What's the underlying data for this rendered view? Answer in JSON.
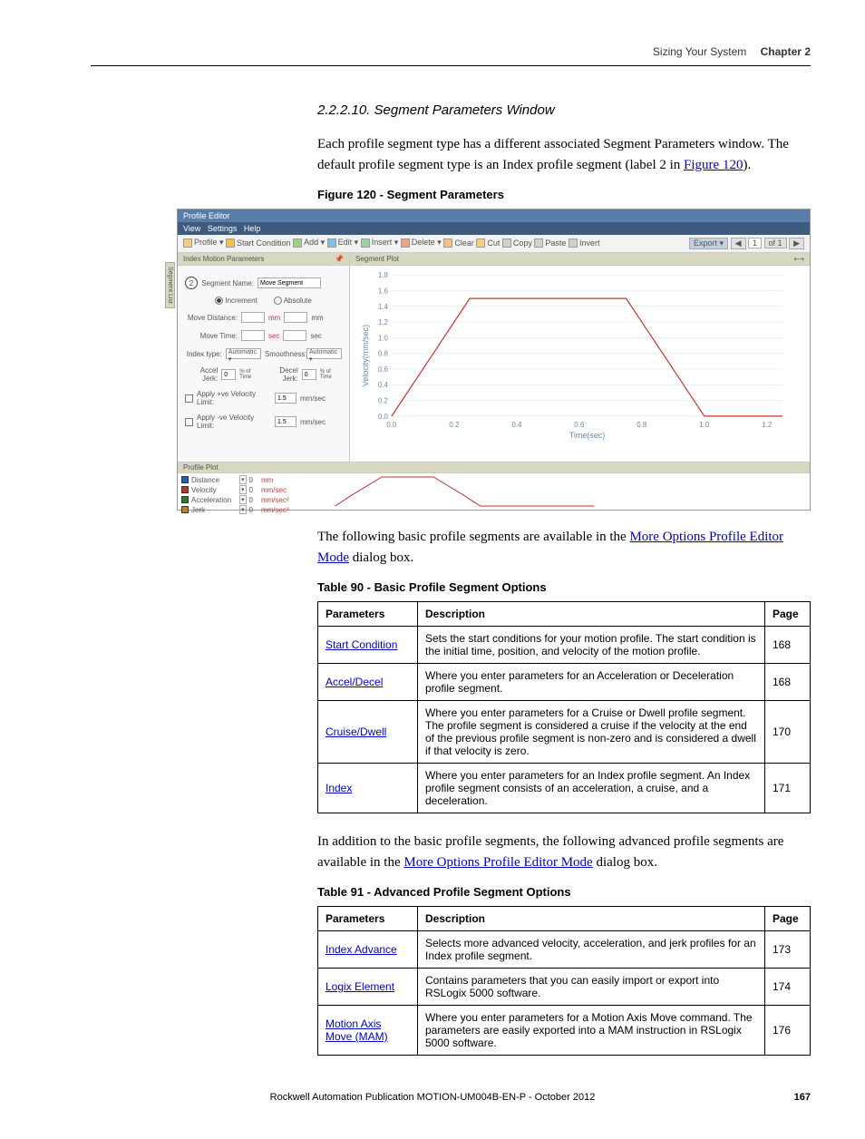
{
  "header": {
    "title": "Sizing Your System",
    "chapter": "Chapter 2"
  },
  "section": {
    "num_title": "2.2.2.10.  Segment Parameters Window",
    "para1_a": "Each profile segment type has a different associated Segment Parameters window. The default profile segment type is an Index profile segment (label 2 in ",
    "para1_link": "Figure 120",
    "para1_b": ").",
    "fig_caption": "Figure 120 - Segment Parameters",
    "para2_a": "The following basic profile segments are available in the ",
    "para2_link": "More Options Profile Editor Mode",
    "para2_b": " dialog box.",
    "para3_a": "In addition to the basic profile segments, the following advanced profile segments are available in the ",
    "para3_link": "More Options Profile Editor Mode",
    "para3_b": " dialog box."
  },
  "figure": {
    "window_title": "Profile Editor",
    "menu": [
      "View",
      "Settings",
      "Help"
    ],
    "toolbar": [
      {
        "label": "Profile ▾",
        "color": "#f0d080"
      },
      {
        "label": "Start Condition",
        "color": "#f0c050"
      },
      {
        "label": "Add ▾",
        "color": "#a0d080"
      },
      {
        "label": "Edit ▾",
        "color": "#80c0e0"
      },
      {
        "label": "Insert ▾",
        "color": "#a0d0a0"
      },
      {
        "label": "Delete ▾",
        "color": "#f0a080"
      },
      {
        "label": "Clear",
        "color": "#f0c080"
      },
      {
        "label": "Cut",
        "color": "#f0d080"
      },
      {
        "label": "Copy",
        "color": "#d0d0d0"
      },
      {
        "label": "Paste",
        "color": "#d0d0d0"
      },
      {
        "label": "Invert",
        "color": "#d0d0d0"
      }
    ],
    "toolbar_right": [
      {
        "label": "Export ▾",
        "color": "#c0d0e0"
      },
      {
        "label": "◀",
        "color": "#e0e0e0"
      },
      {
        "label": "1",
        "color": "#fff"
      },
      {
        "label": "of 1",
        "color": "#e0e0e0"
      },
      {
        "label": "▶",
        "color": "#e0e0e0"
      }
    ],
    "left_panel_title": "Index Motion Parameters",
    "left_panel_pin": "📌",
    "circle_label": "2",
    "seg_name_label": "Segment Name:",
    "seg_name_value": "Move Segment",
    "inc_label": "Increment",
    "abs_label": "Absolute",
    "move_dist_label": "Move Distance:",
    "move_dist_unit1": "mm",
    "move_dist_unit2": "mm",
    "move_time_label": "Move Time:",
    "move_time_unit1": "sec",
    "move_time_unit2": "sec",
    "index_type_label": "Index type:",
    "index_type_val": "Automatic ▾",
    "smoothness_label": "Smoothness:",
    "smoothness_val": "Automatic ▾",
    "accel_label": "Accel Jerk:",
    "accel_val": "0",
    "accel_unit": "% of Time",
    "decel_label": "Decel Jerk:",
    "decel_val": "0",
    "decel_unit": "% of Time",
    "pos_vel_label": "Apply +ve Velocity Limit:",
    "pos_vel_val": "1.5",
    "pos_vel_unit": "mm/sec",
    "neg_vel_label": "Apply -ve Velocity Limit:",
    "neg_vel_val": "1.5",
    "neg_vel_unit": "mm/sec",
    "right_title": "Segment Plot",
    "chart": {
      "type": "line",
      "ylabel": "Velocity(mm/sec)",
      "xlabel": "Time(sec)",
      "line_color": "#cc3333",
      "axis_color": "#6a8aaa",
      "grid_color": "#d5e0ea",
      "x_ticks": [
        0.0,
        0.2,
        0.4,
        0.6,
        0.8,
        1.0,
        1.2
      ],
      "y_ticks": [
        0.0,
        0.2,
        0.4,
        0.6,
        0.8,
        1.0,
        1.2,
        1.4,
        1.6,
        1.8
      ],
      "xlim": [
        0.0,
        1.25
      ],
      "ylim": [
        0.0,
        1.8
      ],
      "points": [
        [
          0,
          0
        ],
        [
          0.25,
          1.5
        ],
        [
          0.75,
          1.5
        ],
        [
          1.0,
          0
        ],
        [
          1.25,
          0
        ]
      ]
    },
    "bottom_title": "Profile Plot",
    "legend": [
      {
        "label": "Distance",
        "unit": "mm",
        "color": "#2060c0"
      },
      {
        "label": "Velocity",
        "unit": "mm/sec",
        "color": "#c03030"
      },
      {
        "label": "Acceleration",
        "unit": "mm/sec²",
        "color": "#208020"
      },
      {
        "label": "Jerk",
        "unit": "mm/sec³",
        "color": "#c08020"
      }
    ],
    "legend_val": "0",
    "bottom_chart": {
      "type": "line",
      "line_color": "#c03030",
      "points": [
        [
          0,
          0
        ],
        [
          0.06,
          0.35
        ],
        [
          0.18,
          1
        ],
        [
          0.38,
          1
        ],
        [
          0.5,
          0.35
        ],
        [
          0.56,
          0
        ],
        [
          1,
          0
        ]
      ]
    }
  },
  "table90": {
    "caption": "Table 90 - Basic Profile Segment Options",
    "headers": [
      "Parameters",
      "Description",
      "Page"
    ],
    "rows": [
      {
        "param": "Start Condition",
        "desc": "Sets the start conditions for your motion profile. The start condition is the initial time, position, and velocity of the motion profile.",
        "page": "168"
      },
      {
        "param": "Accel/Decel",
        "desc": "Where you enter parameters for an Acceleration or Deceleration profile segment.",
        "page": "168"
      },
      {
        "param": "Cruise/Dwell",
        "desc": "Where you enter parameters for a Cruise or Dwell profile segment. The profile segment is considered a cruise if the velocity at the end of the previous profile segment is non-zero and is considered a dwell if that velocity is zero.",
        "page": "170"
      },
      {
        "param": "Index",
        "desc": "Where you enter parameters for an Index profile segment. An Index profile segment consists of an acceleration, a cruise, and a deceleration.",
        "page": "171"
      }
    ]
  },
  "table91": {
    "caption": "Table 91 - Advanced Profile Segment Options",
    "headers": [
      "Parameters",
      "Description",
      "Page"
    ],
    "rows": [
      {
        "param": "Index Advance",
        "desc": "Selects more advanced velocity, acceleration, and jerk profiles for an Index profile segment.",
        "page": "173"
      },
      {
        "param": "Logix Element",
        "desc": "Contains parameters that you can easily import or export into RSLogix 5000 software.",
        "page": "174"
      },
      {
        "param": "Motion Axis Move (MAM)",
        "desc": "Where you enter parameters for a Motion Axis Move command. The parameters are easily exported into a MAM instruction in RSLogix 5000 software.",
        "page": "176"
      }
    ]
  },
  "footer": {
    "text": "Rockwell Automation Publication MOTION-UM004B-EN-P - October 2012",
    "page": "167"
  }
}
